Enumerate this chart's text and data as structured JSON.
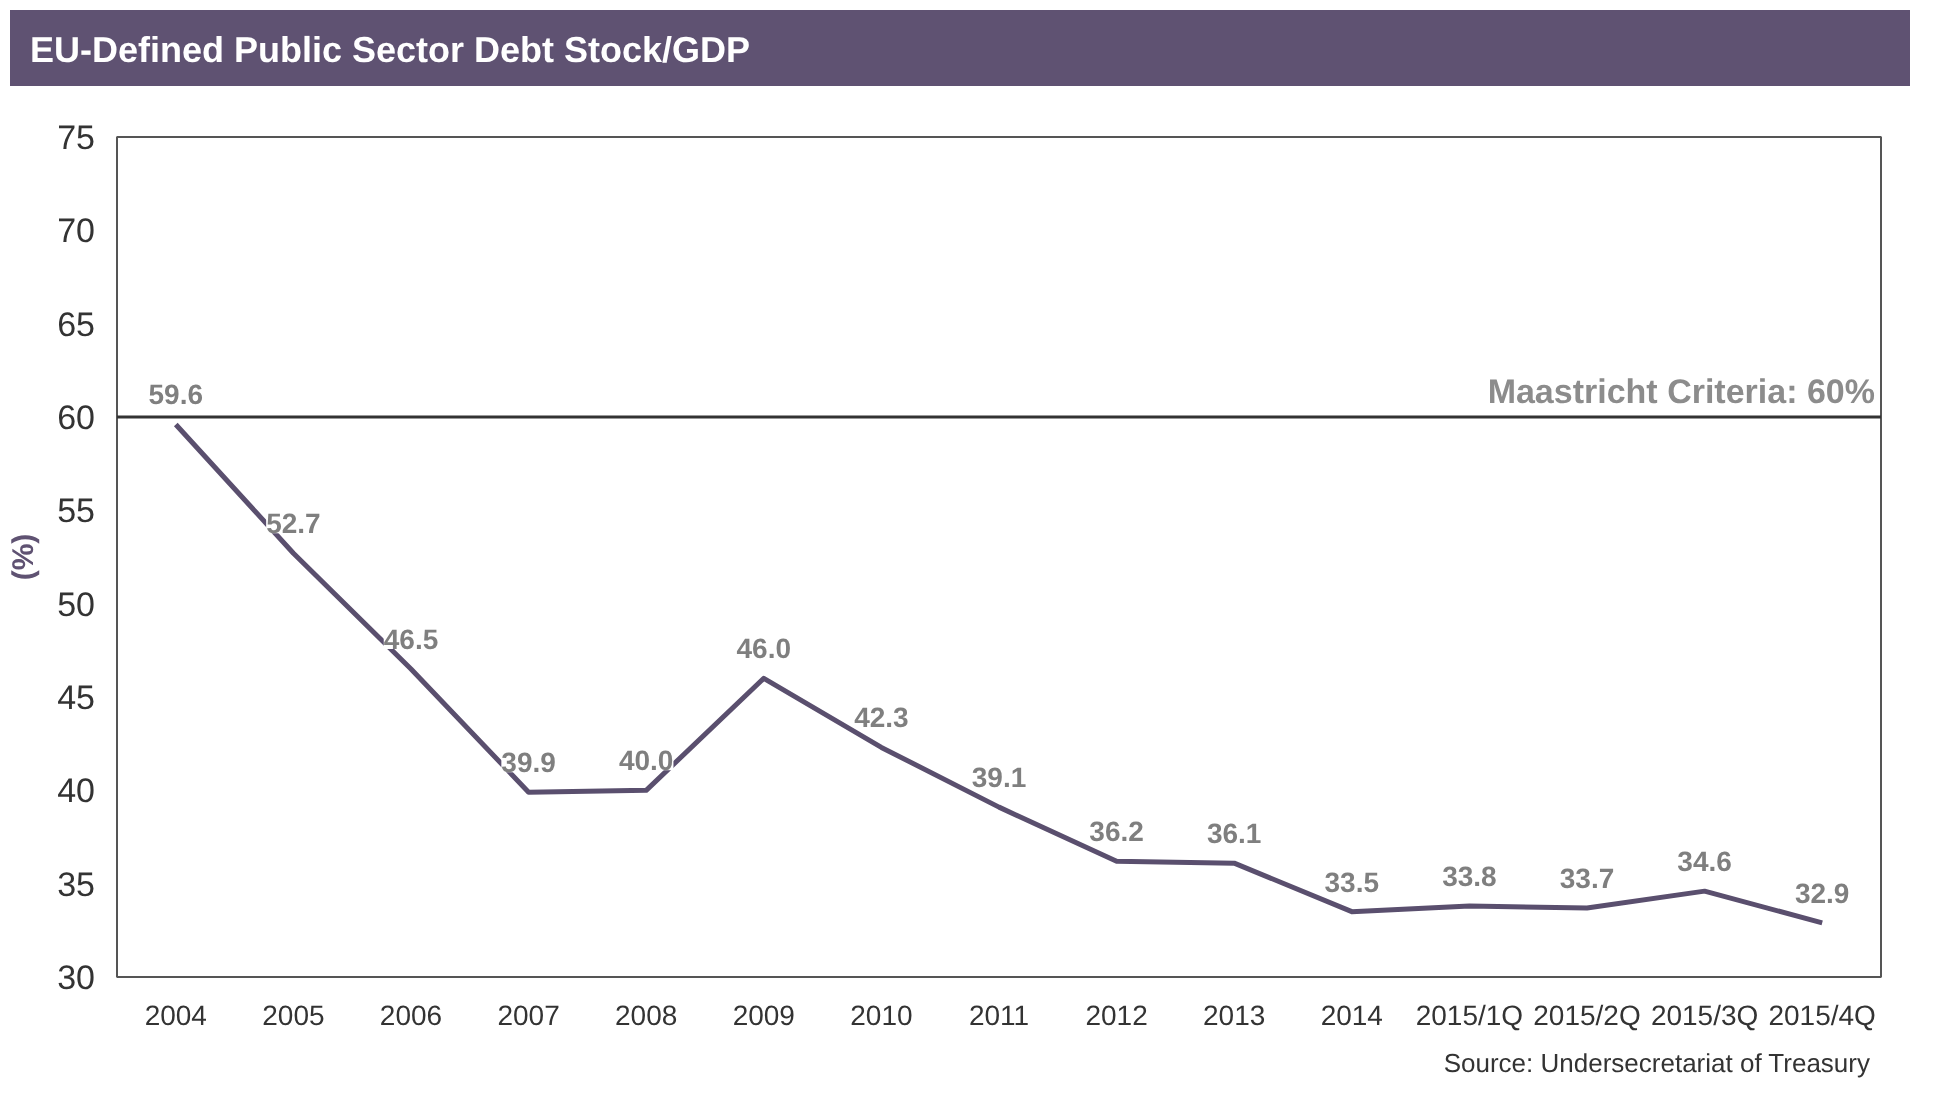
{
  "chart_data": {
    "type": "line",
    "title": "EU-Defined Public Sector Debt Stock/GDP",
    "ylabel": "(%)",
    "categories": [
      "2004",
      "2005",
      "2006",
      "2007",
      "2008",
      "2009",
      "2010",
      "2011",
      "2012",
      "2013",
      "2014",
      "2015/1Q",
      "2015/2Q",
      "2015/3Q",
      "2015/4Q"
    ],
    "values": [
      59.6,
      52.7,
      46.5,
      39.9,
      40.0,
      46.0,
      42.3,
      39.1,
      36.2,
      36.1,
      33.5,
      33.8,
      33.7,
      34.6,
      32.9
    ],
    "color": "#5a4f6e",
    "ylim": [
      30,
      75
    ],
    "yticks": [
      30,
      35,
      40,
      45,
      50,
      55,
      60,
      65,
      70,
      75
    ],
    "grid": false,
    "value_labels": [
      "59.6",
      "52.7",
      "46.5",
      "39.9",
      "40.0",
      "46.0",
      "42.3",
      "39.1",
      "36.2",
      "36.1",
      "33.5",
      "33.8",
      "33.7",
      "34.6",
      "32.9"
    ],
    "marker": "none",
    "line_style": "solid",
    "ref_lines": [
      {
        "axis": "y",
        "value": 60,
        "label": "Maastricht Criteria: 60%",
        "color": "#333333"
      }
    ],
    "annotations": [
      "Source: Undersecretariat of Treasury"
    ]
  }
}
